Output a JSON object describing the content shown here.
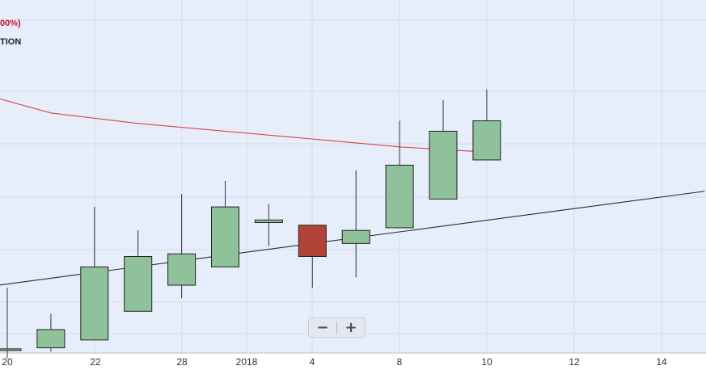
{
  "legend": {
    "line1": "00%)",
    "line2": "TION"
  },
  "zoom": {
    "minus_label": "−",
    "plus_label": "+"
  },
  "colors": {
    "background": "#e6eefb",
    "grid": "#d6dce8",
    "up_fill": "#8fc19a",
    "down_fill": "#b04236",
    "candle_border": "#222222",
    "wick": "#333333",
    "moving_average": "#d9434f",
    "trendline": "#2b2b2b"
  },
  "chart_data": {
    "type": "candlestick",
    "x_tick_labels": [
      "20",
      "22",
      "28",
      "2018",
      "4",
      "8",
      "10",
      "12",
      "14"
    ],
    "candles": [
      {
        "open": 0.7,
        "high": 12.5,
        "low": -1.0,
        "close": 0.8
      },
      {
        "open": 1.0,
        "high": 7.5,
        "low": 0.3,
        "close": 4.5
      },
      {
        "open": 2.5,
        "high": 28.0,
        "low": 2.5,
        "close": 16.5
      },
      {
        "open": 8.0,
        "high": 23.5,
        "low": 8.0,
        "close": 18.5
      },
      {
        "open": 13.0,
        "high": 30.5,
        "low": 10.5,
        "close": 19.0
      },
      {
        "open": 16.5,
        "high": 33.0,
        "low": 16.5,
        "close": 28.0
      },
      {
        "open": 25.0,
        "high": 28.5,
        "low": 20.5,
        "close": 25.5
      },
      {
        "open": 24.5,
        "high": 24.5,
        "low": 12.5,
        "close": 18.5
      },
      {
        "open": 21.0,
        "high": 35.0,
        "low": 14.5,
        "close": 23.5
      },
      {
        "open": 24.0,
        "high": 44.5,
        "low": 24.0,
        "close": 36.0
      },
      {
        "open": 29.5,
        "high": 48.5,
        "low": 29.5,
        "close": 42.5
      },
      {
        "open": 37.0,
        "high": 50.5,
        "low": 37.0,
        "close": 44.5
      }
    ],
    "moving_average": [
      {
        "i": -0.3,
        "v": 49.0
      },
      {
        "i": 1.0,
        "v": 46.0
      },
      {
        "i": 3.0,
        "v": 44.0
      },
      {
        "i": 5.0,
        "v": 42.5
      },
      {
        "i": 7.0,
        "v": 41.0
      },
      {
        "i": 9.0,
        "v": 39.5
      },
      {
        "i": 11.0,
        "v": 38.5
      }
    ],
    "trendline": [
      {
        "i": -0.2,
        "v": 13.0
      },
      {
        "i": 16.0,
        "v": 31.0
      }
    ],
    "grid": true
  }
}
